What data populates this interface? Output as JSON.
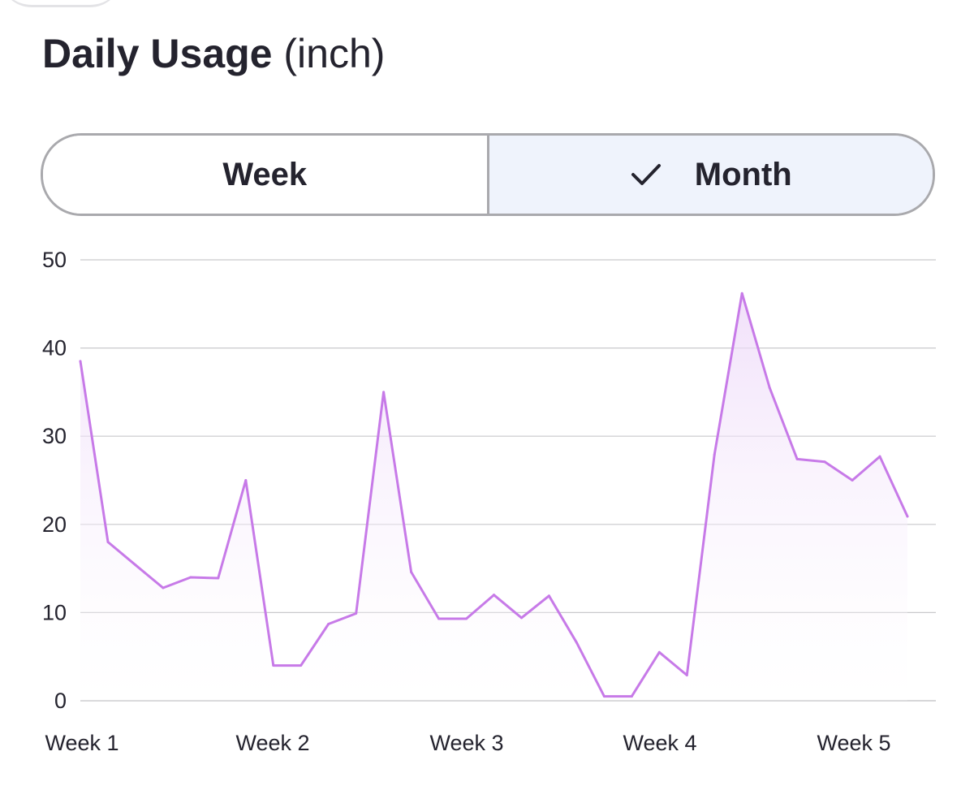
{
  "header": {
    "title": "Daily Usage",
    "unit": "(inch)"
  },
  "segmented_control": {
    "options": [
      {
        "label": "Week",
        "selected": false
      },
      {
        "label": "Month",
        "selected": true
      }
    ],
    "selected_icon": "checkmark-icon"
  },
  "colors": {
    "line": "#c77ae8",
    "fill_top": "#ecd6f8",
    "grid": "#c9c9cc",
    "selected_segment_bg": "#eff3fc",
    "text": "#24232e"
  },
  "chart_data": {
    "type": "area",
    "title": "",
    "xlabel": "",
    "ylabel": "",
    "ylim": [
      0,
      50
    ],
    "yticks": [
      0,
      10,
      20,
      30,
      40,
      50
    ],
    "xticks": [
      "Week 1",
      "Week 2",
      "Week 3",
      "Week 4",
      "Week 5"
    ],
    "grid": true,
    "series": [
      {
        "values": [
          38.5,
          18.0,
          15.4,
          12.8,
          14.0,
          13.9,
          25.0,
          4.0,
          4.0,
          8.7,
          9.9,
          35.0,
          14.6,
          9.3,
          9.3,
          12.0,
          9.4,
          11.9,
          6.6,
          0.5,
          0.5,
          5.5,
          2.9,
          27.9,
          46.2,
          35.5,
          27.4,
          27.1,
          25.0,
          27.7,
          20.9
        ]
      }
    ]
  }
}
